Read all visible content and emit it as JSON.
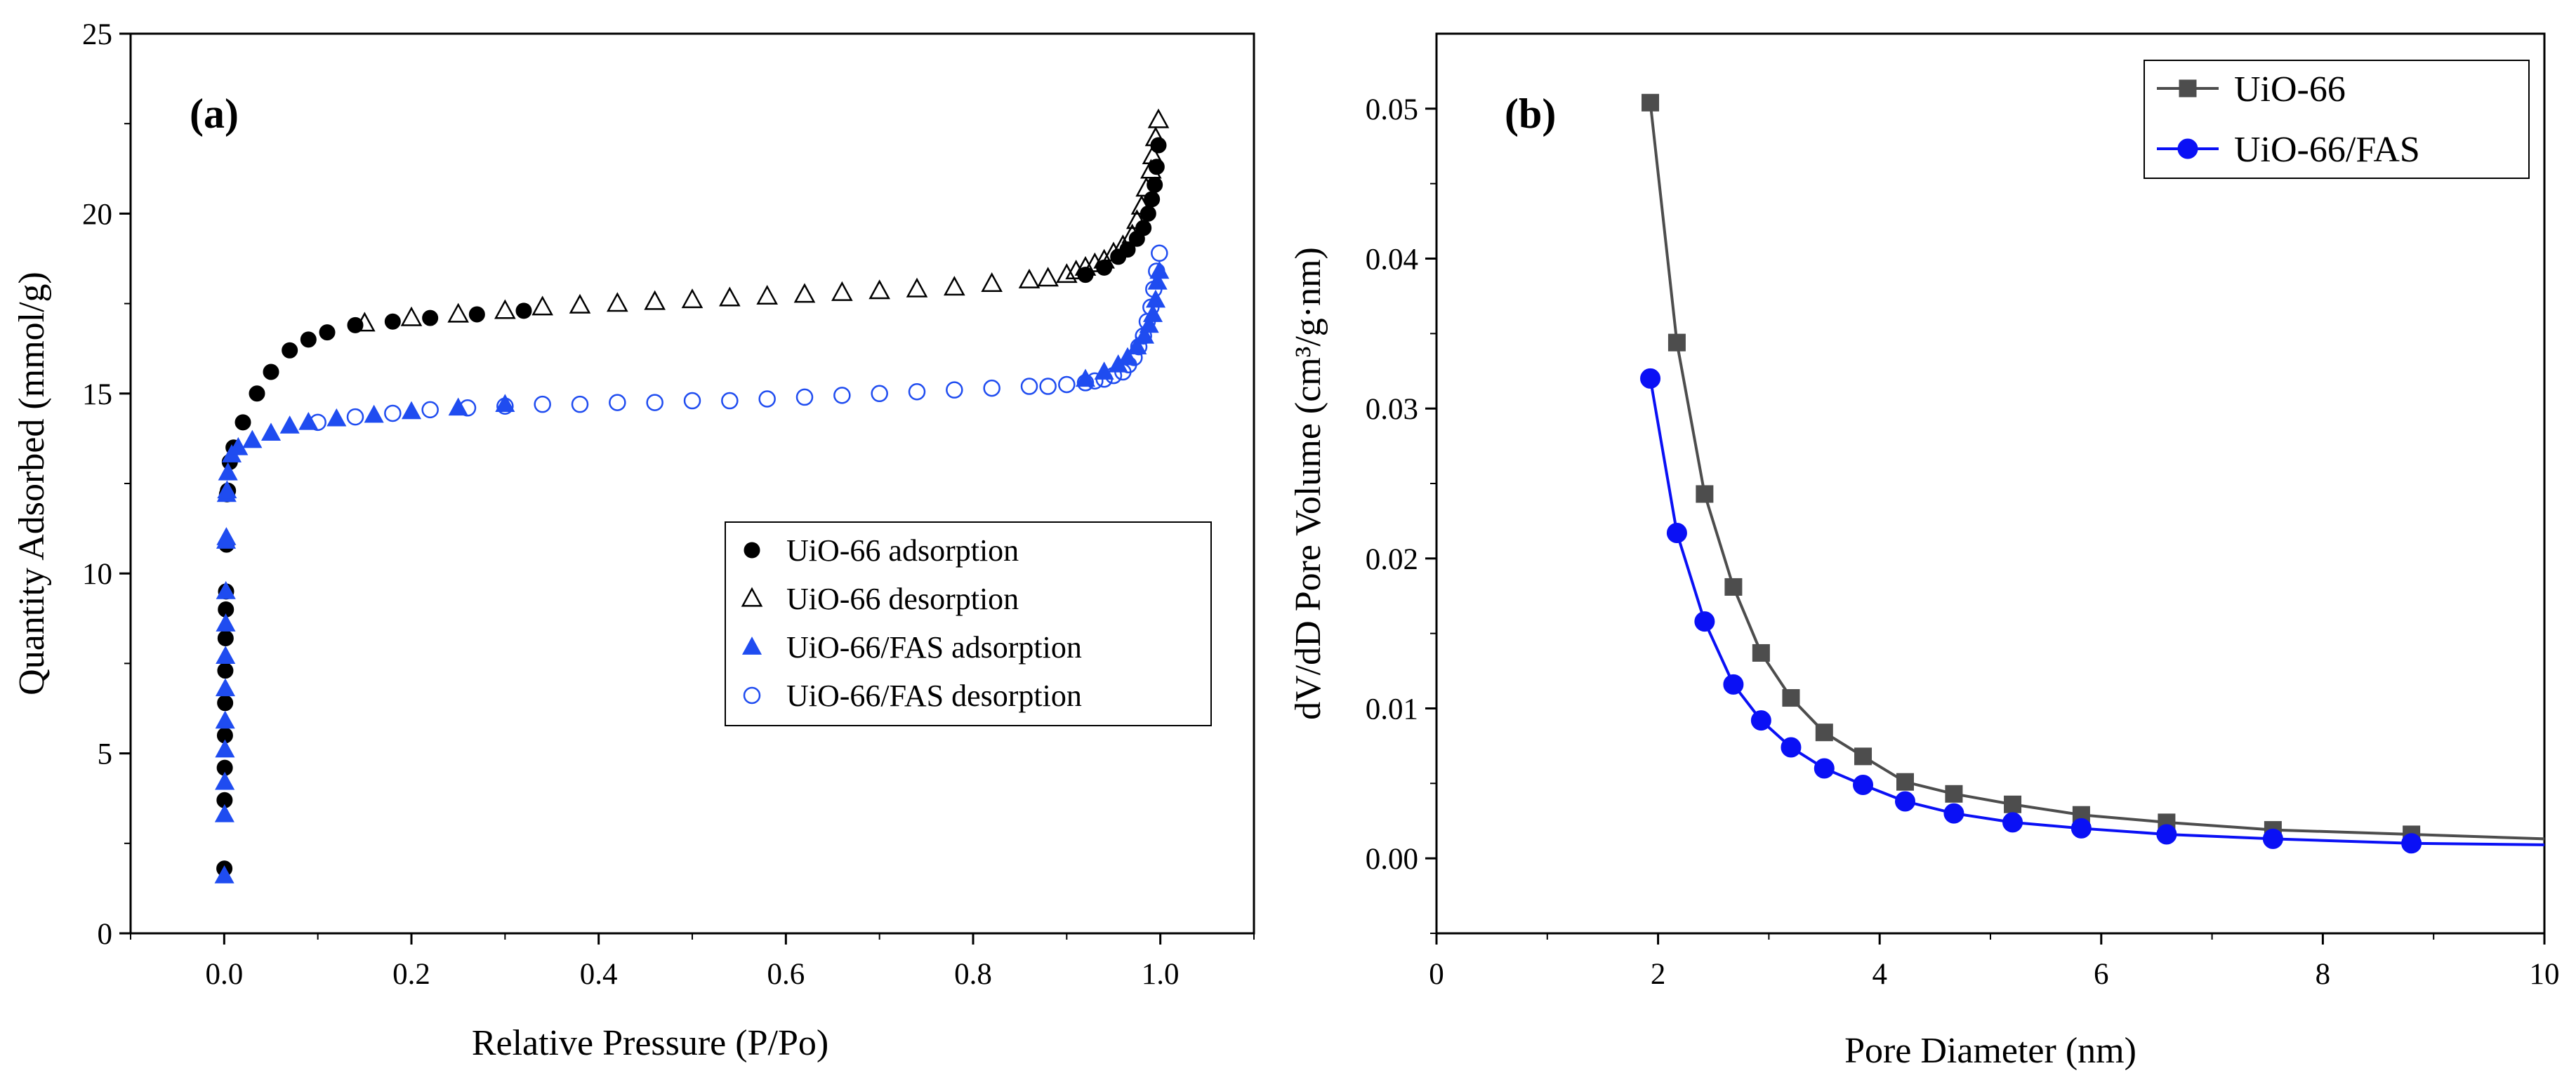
{
  "chart_data": [
    {
      "id": "a",
      "type": "scatter",
      "panel_label": "(a)",
      "xlabel": "Relative Pressure (P/Po)",
      "ylabel": "Quantity Adsorbed (mmol/g)",
      "xlim": [
        -0.1,
        1.1
      ],
      "ylim": [
        0,
        25
      ],
      "xticks": [
        0.0,
        0.2,
        0.4,
        0.6,
        0.8,
        1.0
      ],
      "xtick_labels": [
        "0.0",
        "0.2",
        "0.4",
        "0.6",
        "0.8",
        "1.0"
      ],
      "yticks": [
        0,
        5,
        10,
        15,
        20,
        25
      ],
      "ytick_labels": [
        "0",
        "5",
        "10",
        "15",
        "20",
        "25"
      ],
      "legend_position": "center-right",
      "series": [
        {
          "name": "UiO-66 adsorption",
          "marker": "circle",
          "filled": true,
          "color": "#000000",
          "x": [
            0.0002,
            0.0004,
            0.0006,
            0.0008,
            0.001,
            0.0012,
            0.0015,
            0.0018,
            0.002,
            0.0025,
            0.003,
            0.004,
            0.006,
            0.01,
            0.02,
            0.035,
            0.05,
            0.07,
            0.09,
            0.11,
            0.14,
            0.18,
            0.22,
            0.27,
            0.32,
            0.92,
            0.94,
            0.955,
            0.965,
            0.975,
            0.982,
            0.987,
            0.991,
            0.994,
            0.996,
            0.998
          ],
          "y": [
            1.8,
            3.7,
            4.6,
            5.5,
            6.4,
            7.3,
            8.2,
            9.0,
            9.5,
            10.8,
            12.2,
            12.3,
            13.1,
            13.5,
            14.2,
            15.0,
            15.6,
            16.2,
            16.5,
            16.7,
            16.9,
            17.0,
            17.1,
            17.2,
            17.3,
            18.3,
            18.5,
            18.8,
            19.0,
            19.3,
            19.6,
            20.0,
            20.4,
            20.8,
            21.3,
            21.9
          ]
        },
        {
          "name": "UiO-66 desorption",
          "marker": "triangle",
          "filled": false,
          "color": "#000000",
          "x": [
            0.998,
            0.995,
            0.992,
            0.99,
            0.985,
            0.98,
            0.975,
            0.97,
            0.96,
            0.95,
            0.94,
            0.93,
            0.92,
            0.91,
            0.9,
            0.88,
            0.86,
            0.82,
            0.78,
            0.74,
            0.7,
            0.66,
            0.62,
            0.58,
            0.54,
            0.5,
            0.46,
            0.42,
            0.38,
            0.34,
            0.3,
            0.25,
            0.2,
            0.15
          ],
          "y": [
            22.6,
            22.1,
            21.6,
            21.2,
            20.7,
            20.2,
            19.8,
            19.4,
            19.1,
            18.9,
            18.7,
            18.6,
            18.5,
            18.4,
            18.3,
            18.2,
            18.15,
            18.05,
            17.95,
            17.9,
            17.85,
            17.8,
            17.75,
            17.7,
            17.65,
            17.6,
            17.55,
            17.5,
            17.45,
            17.4,
            17.3,
            17.2,
            17.1,
            16.95
          ]
        },
        {
          "name": "UiO-66/FAS adsorption",
          "marker": "triangle",
          "filled": true,
          "color": "#1f4cf0",
          "x": [
            0.0002,
            0.0004,
            0.0006,
            0.0008,
            0.001,
            0.0012,
            0.0014,
            0.0016,
            0.0018,
            0.002,
            0.0023,
            0.0026,
            0.003,
            0.004,
            0.008,
            0.015,
            0.03,
            0.05,
            0.07,
            0.09,
            0.12,
            0.16,
            0.2,
            0.25,
            0.3,
            0.92,
            0.94,
            0.955,
            0.965,
            0.975,
            0.983,
            0.988,
            0.992,
            0.995,
            0.997,
            0.999
          ],
          "y": [
            1.6,
            3.3,
            4.2,
            5.1,
            5.9,
            6.8,
            7.7,
            8.6,
            9.5,
            10.9,
            11.0,
            12.2,
            12.3,
            12.8,
            13.3,
            13.5,
            13.7,
            13.9,
            14.1,
            14.2,
            14.3,
            14.4,
            14.5,
            14.6,
            14.7,
            15.4,
            15.6,
            15.8,
            16.0,
            16.3,
            16.6,
            16.9,
            17.2,
            17.6,
            18.1,
            18.4
          ]
        },
        {
          "name": "UiO-66/FAS desorption",
          "marker": "circle",
          "filled": false,
          "color": "#1f4cf0",
          "x": [
            0.999,
            0.996,
            0.993,
            0.99,
            0.986,
            0.982,
            0.977,
            0.972,
            0.966,
            0.96,
            0.95,
            0.94,
            0.93,
            0.92,
            0.9,
            0.88,
            0.86,
            0.82,
            0.78,
            0.74,
            0.7,
            0.66,
            0.62,
            0.58,
            0.54,
            0.5,
            0.46,
            0.42,
            0.38,
            0.34,
            0.3,
            0.26,
            0.22,
            0.18,
            0.14,
            0.1
          ],
          "y": [
            18.9,
            18.4,
            17.9,
            17.4,
            17.0,
            16.6,
            16.3,
            16.0,
            15.8,
            15.6,
            15.5,
            15.4,
            15.35,
            15.3,
            15.25,
            15.2,
            15.2,
            15.15,
            15.1,
            15.05,
            15.0,
            14.95,
            14.9,
            14.85,
            14.8,
            14.8,
            14.75,
            14.75,
            14.7,
            14.7,
            14.65,
            14.6,
            14.55,
            14.45,
            14.35,
            14.2
          ]
        }
      ]
    },
    {
      "id": "b",
      "type": "line",
      "panel_label": "(b)",
      "xlabel": "Pore Diameter (nm)",
      "ylabel": "dV/dD Pore Volume (cm³/g·nm)",
      "xlim": [
        0,
        10
      ],
      "ylim": [
        -0.005,
        0.055
      ],
      "xticks": [
        0,
        2,
        4,
        6,
        8,
        10
      ],
      "xtick_labels": [
        "0",
        "2",
        "4",
        "6",
        "8",
        "10"
      ],
      "yticks": [
        0.0,
        0.01,
        0.02,
        0.03,
        0.04,
        0.05
      ],
      "ytick_labels": [
        "0.00",
        "0.01",
        "0.02",
        "0.03",
        "0.04",
        "0.05"
      ],
      "legend_position": "top-right",
      "series": [
        {
          "name": "UiO-66",
          "marker": "square",
          "color": "#4d4d4d",
          "x": [
            1.93,
            2.17,
            2.42,
            2.68,
            2.93,
            3.2,
            3.5,
            3.85,
            4.23,
            4.67,
            5.2,
            5.82,
            6.59,
            7.55,
            8.8,
            10.0
          ],
          "y": [
            0.0504,
            0.0344,
            0.0243,
            0.0181,
            0.0137,
            0.0107,
            0.0084,
            0.0068,
            0.0051,
            0.0043,
            0.0036,
            0.0029,
            0.0024,
            0.0019,
            0.0016,
            0.0013
          ]
        },
        {
          "name": "UiO-66/FAS",
          "marker": "circle",
          "color": "#0a10f5",
          "x": [
            1.93,
            2.17,
            2.42,
            2.68,
            2.93,
            3.2,
            3.5,
            3.85,
            4.23,
            4.67,
            5.2,
            5.82,
            6.59,
            7.55,
            8.8,
            10.0
          ],
          "y": [
            0.032,
            0.0217,
            0.0158,
            0.0116,
            0.0092,
            0.0074,
            0.006,
            0.0049,
            0.0038,
            0.003,
            0.0024,
            0.002,
            0.0016,
            0.0013,
            0.001,
            0.0009
          ]
        }
      ]
    }
  ]
}
